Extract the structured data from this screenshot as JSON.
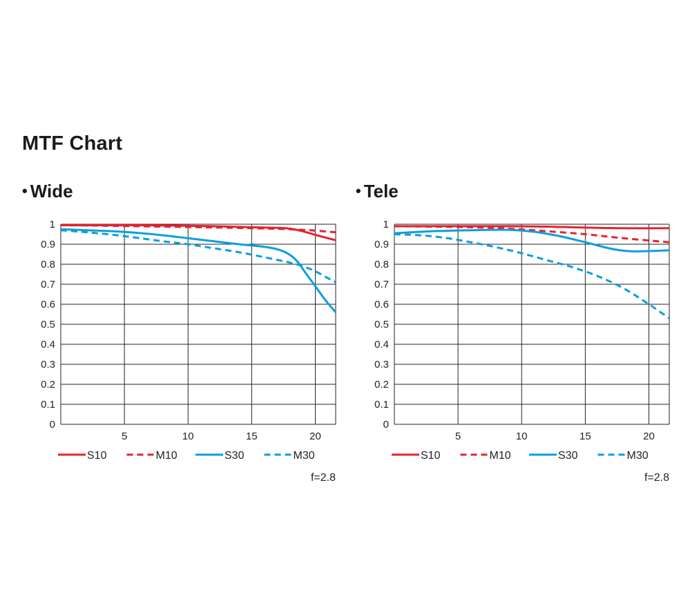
{
  "page": {
    "title": "MTF Chart",
    "bullet": "•"
  },
  "colors": {
    "red": "#e8212e",
    "blue": "#0a9ee0",
    "grid": "#222222"
  },
  "chart_data": [
    {
      "type": "line",
      "title": "Wide",
      "xlabel": "",
      "ylabel": "",
      "xlim": [
        0,
        21.6
      ],
      "ylim": [
        0,
        1
      ],
      "xticks": [
        5,
        10,
        15,
        20
      ],
      "yticks": [
        0,
        0.1,
        0.2,
        0.3,
        0.4,
        0.5,
        0.6,
        0.7,
        0.8,
        0.9,
        1
      ],
      "ytick_labels": [
        "0",
        "0.1",
        "0.2",
        "0.3",
        "0.4",
        "0.5",
        "0.6",
        "0.7",
        "0.8",
        "0.9",
        "1"
      ],
      "grid": true,
      "legend_position": "bottom",
      "note": "f=2.8",
      "series": [
        {
          "name": "S10",
          "style": "solid",
          "color": "#e8212e",
          "x": [
            0,
            3,
            6,
            9,
            12,
            15,
            17,
            18,
            19,
            20,
            21,
            21.6
          ],
          "y": [
            0.995,
            0.995,
            0.995,
            0.993,
            0.99,
            0.985,
            0.982,
            0.978,
            0.965,
            0.947,
            0.93,
            0.92
          ]
        },
        {
          "name": "M10",
          "style": "dashed",
          "color": "#e8212e",
          "x": [
            0,
            3,
            6,
            9,
            12,
            15,
            17,
            19,
            20,
            21,
            21.6
          ],
          "y": [
            0.995,
            0.993,
            0.99,
            0.987,
            0.984,
            0.98,
            0.977,
            0.972,
            0.968,
            0.963,
            0.96
          ]
        },
        {
          "name": "S30",
          "style": "solid",
          "color": "#0a9ee0",
          "x": [
            0,
            2,
            4,
            6,
            8,
            10,
            12,
            14,
            16,
            17,
            17.8,
            18.5,
            19.2,
            20,
            20.8,
            21.6
          ],
          "y": [
            0.975,
            0.97,
            0.965,
            0.957,
            0.945,
            0.93,
            0.915,
            0.9,
            0.887,
            0.875,
            0.855,
            0.82,
            0.76,
            0.69,
            0.62,
            0.56
          ]
        },
        {
          "name": "M30",
          "style": "dashed",
          "color": "#0a9ee0",
          "x": [
            0,
            2,
            4,
            6,
            8,
            10,
            12,
            14,
            16,
            18,
            19,
            20,
            21,
            21.6
          ],
          "y": [
            0.97,
            0.96,
            0.948,
            0.932,
            0.915,
            0.9,
            0.88,
            0.86,
            0.835,
            0.808,
            0.79,
            0.765,
            0.73,
            0.71
          ]
        }
      ]
    },
    {
      "type": "line",
      "title": "Tele",
      "xlabel": "",
      "ylabel": "",
      "xlim": [
        0,
        21.6
      ],
      "ylim": [
        0,
        1
      ],
      "xticks": [
        5,
        10,
        15,
        20
      ],
      "yticks": [
        0,
        0.1,
        0.2,
        0.3,
        0.4,
        0.5,
        0.6,
        0.7,
        0.8,
        0.9,
        1
      ],
      "ytick_labels": [
        "0",
        "0.1",
        "0.2",
        "0.3",
        "0.4",
        "0.5",
        "0.6",
        "0.7",
        "0.8",
        "0.9",
        "1"
      ],
      "grid": true,
      "legend_position": "bottom",
      "note": "f=2.8",
      "series": [
        {
          "name": "S10",
          "style": "solid",
          "color": "#e8212e",
          "x": [
            0,
            3,
            6,
            9,
            12,
            15,
            18,
            21.6
          ],
          "y": [
            0.99,
            0.99,
            0.99,
            0.99,
            0.988,
            0.983,
            0.98,
            0.98
          ]
        },
        {
          "name": "M10",
          "style": "dashed",
          "color": "#e8212e",
          "x": [
            0,
            3,
            6,
            9,
            12,
            15,
            18,
            21.6
          ],
          "y": [
            0.99,
            0.988,
            0.985,
            0.978,
            0.965,
            0.95,
            0.93,
            0.91
          ]
        },
        {
          "name": "S30",
          "style": "solid",
          "color": "#0a9ee0",
          "x": [
            0,
            3,
            6,
            9,
            11,
            13,
            15,
            17,
            18.5,
            20,
            21.6
          ],
          "y": [
            0.955,
            0.965,
            0.97,
            0.972,
            0.962,
            0.94,
            0.91,
            0.878,
            0.865,
            0.866,
            0.87
          ]
        },
        {
          "name": "M30",
          "style": "dashed",
          "color": "#0a9ee0",
          "x": [
            0,
            2,
            4,
            6,
            8,
            10,
            12,
            14,
            16,
            18,
            20,
            21.6
          ],
          "y": [
            0.95,
            0.945,
            0.932,
            0.91,
            0.885,
            0.855,
            0.82,
            0.785,
            0.74,
            0.68,
            0.6,
            0.53
          ]
        }
      ]
    }
  ]
}
